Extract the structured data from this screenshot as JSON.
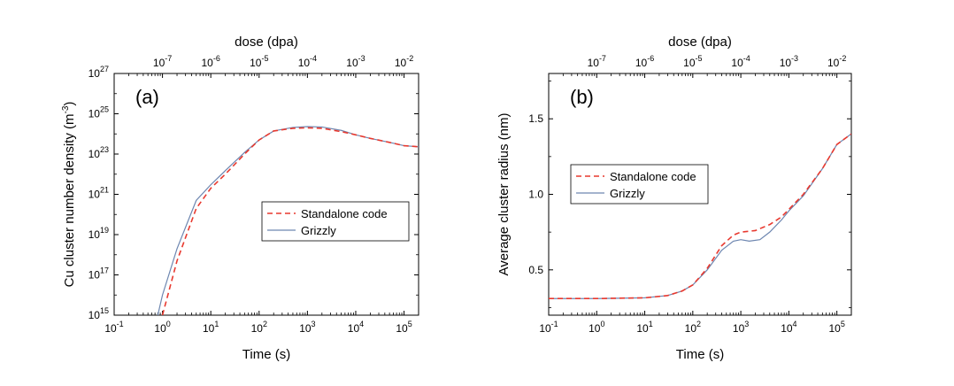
{
  "chart_data": [
    {
      "type": "line",
      "panel_label": "(a)",
      "xlabel": "Time (s)",
      "ylabel_main": "Cu cluster number density (m",
      "ylabel_sup": "-3",
      "ylabel_tail": ")",
      "top_xlabel": "dose (dpa)",
      "x_scale": "log",
      "y_scale": "log",
      "xlim": [
        0.1,
        200000
      ],
      "ylim": [
        1000000000000000.0,
        1e+27
      ],
      "x_ticks": [
        {
          "base": "10",
          "exp": "-1",
          "value": 0.1
        },
        {
          "base": "10",
          "exp": "0",
          "value": 1
        },
        {
          "base": "10",
          "exp": "1",
          "value": 10
        },
        {
          "base": "10",
          "exp": "2",
          "value": 100
        },
        {
          "base": "10",
          "exp": "3",
          "value": 1000
        },
        {
          "base": "10",
          "exp": "4",
          "value": 10000
        },
        {
          "base": "10",
          "exp": "5",
          "value": 100000
        }
      ],
      "y_ticks": [
        {
          "base": "10",
          "exp": "15",
          "value": 1000000000000000.0
        },
        {
          "base": "10",
          "exp": "17",
          "value": 1e+17
        },
        {
          "base": "10",
          "exp": "19",
          "value": 1e+19
        },
        {
          "base": "10",
          "exp": "21",
          "value": 1e+21
        },
        {
          "base": "10",
          "exp": "23",
          "value": 1e+23
        },
        {
          "base": "10",
          "exp": "25",
          "value": 1e+25
        },
        {
          "base": "10",
          "exp": "27",
          "value": 1e+27
        }
      ],
      "top_ticks": [
        {
          "base": "10",
          "exp": "-7",
          "value": 1e-07
        },
        {
          "base": "10",
          "exp": "-6",
          "value": 1e-06
        },
        {
          "base": "10",
          "exp": "-5",
          "value": 1e-05
        },
        {
          "base": "10",
          "exp": "-4",
          "value": 0.0001
        },
        {
          "base": "10",
          "exp": "-3",
          "value": 0.001
        },
        {
          "base": "10",
          "exp": "-2",
          "value": 0.01
        }
      ],
      "top_axis_dose_per_second": 1e-07,
      "legend_position": "center-right",
      "series": [
        {
          "name": "Standalone code",
          "style": "dashed",
          "color": "#e8392f",
          "x": [
            1,
            2,
            5,
            10,
            20,
            50,
            100,
            200,
            500,
            1000,
            2000,
            5000,
            10000,
            20000,
            50000,
            100000,
            200000
          ],
          "y": [
            1000000000000000.0,
            5e+17,
            2e+20,
            2e+21,
            1e+22,
            1e+23,
            5e+23,
            1.4e+24,
            1.9e+24,
            2e+24,
            1.9e+24,
            1.3e+24,
            9e+23,
            6e+23,
            3.8e+23,
            2.6e+23,
            2.3e+23
          ]
        },
        {
          "name": "Grizzly",
          "style": "solid",
          "color": "#6d86b0",
          "x": [
            0.8,
            1,
            2,
            5,
            10,
            20,
            50,
            100,
            200,
            500,
            1000,
            2000,
            5000,
            10000,
            20000,
            50000,
            100000,
            200000
          ],
          "y": [
            1000000000000000.0,
            1e+16,
            2e+18,
            5e+20,
            3e+21,
            1.5e+22,
            1.2e+23,
            5e+23,
            1.4e+24,
            2.1e+24,
            2.3e+24,
            2.2e+24,
            1.5e+24,
            9e+23,
            6e+23,
            3.8e+23,
            2.6e+23,
            2.3e+23
          ]
        }
      ]
    },
    {
      "type": "line",
      "panel_label": "(b)",
      "xlabel": "Time (s)",
      "ylabel_main": "Average cluster radius (nm)",
      "ylabel_sup": "",
      "ylabel_tail": "",
      "top_xlabel": "dose (dpa)",
      "x_scale": "log",
      "y_scale": "linear",
      "xlim": [
        0.1,
        200000
      ],
      "ylim": [
        0.2,
        1.8
      ],
      "x_ticks": [
        {
          "base": "10",
          "exp": "-1",
          "value": 0.1
        },
        {
          "base": "10",
          "exp": "0",
          "value": 1
        },
        {
          "base": "10",
          "exp": "1",
          "value": 10
        },
        {
          "base": "10",
          "exp": "2",
          "value": 100
        },
        {
          "base": "10",
          "exp": "3",
          "value": 1000
        },
        {
          "base": "10",
          "exp": "4",
          "value": 10000
        },
        {
          "base": "10",
          "exp": "5",
          "value": 100000
        }
      ],
      "y_ticks": [
        {
          "base": "0.5",
          "exp": "",
          "value": 0.5
        },
        {
          "base": "1.0",
          "exp": "",
          "value": 1.0
        },
        {
          "base": "1.5",
          "exp": "",
          "value": 1.5
        }
      ],
      "top_ticks": [
        {
          "base": "10",
          "exp": "-7",
          "value": 1e-07
        },
        {
          "base": "10",
          "exp": "-6",
          "value": 1e-06
        },
        {
          "base": "10",
          "exp": "-5",
          "value": 1e-05
        },
        {
          "base": "10",
          "exp": "-4",
          "value": 0.0001
        },
        {
          "base": "10",
          "exp": "-3",
          "value": 0.001
        },
        {
          "base": "10",
          "exp": "-2",
          "value": 0.01
        }
      ],
      "top_axis_dose_per_second": 1e-07,
      "legend_position": "center-left",
      "series": [
        {
          "name": "Standalone code",
          "style": "dashed",
          "color": "#e8392f",
          "x": [
            0.1,
            1,
            10,
            30,
            60,
            100,
            200,
            400,
            700,
            1000,
            2000,
            4000,
            7000,
            10000,
            20000,
            50000,
            100000,
            200000
          ],
          "y": [
            0.31,
            0.31,
            0.315,
            0.33,
            0.36,
            0.4,
            0.51,
            0.66,
            0.73,
            0.75,
            0.76,
            0.8,
            0.85,
            0.9,
            1.0,
            1.17,
            1.33,
            1.4
          ]
        },
        {
          "name": "Grizzly",
          "style": "solid",
          "color": "#6d86b0",
          "x": [
            0.1,
            1,
            10,
            30,
            60,
            100,
            200,
            400,
            700,
            1000,
            1500,
            2500,
            4000,
            7000,
            10000,
            20000,
            50000,
            100000,
            200000
          ],
          "y": [
            0.31,
            0.31,
            0.315,
            0.33,
            0.36,
            0.4,
            0.5,
            0.63,
            0.69,
            0.7,
            0.69,
            0.7,
            0.75,
            0.83,
            0.89,
            0.99,
            1.17,
            1.33,
            1.4
          ]
        }
      ]
    }
  ]
}
